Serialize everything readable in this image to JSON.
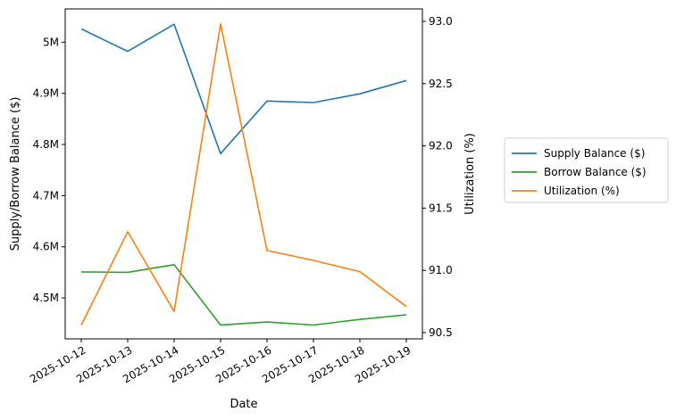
{
  "chart_data": {
    "type": "line",
    "title": "",
    "xlabel": "Date",
    "ylabel": "Supply/Borrow Balance ($)",
    "y2label": "Utilization (%)",
    "x": [
      "2025-10-12",
      "2025-10-13",
      "2025-10-14",
      "2025-10-15",
      "2025-10-16",
      "2025-10-17",
      "2025-10-18",
      "2025-10-19"
    ],
    "ylim": [
      4420000,
      5065000
    ],
    "y2lim": [
      90.45,
      93.1
    ],
    "yticks": [
      4500000,
      4600000,
      4700000,
      4800000,
      4900000,
      5000000
    ],
    "ytick_labels": [
      "4.5M",
      "4.6M",
      "4.7M",
      "4.8M",
      "4.9M",
      "5M"
    ],
    "y2ticks": [
      90.5,
      91.0,
      91.5,
      92.0,
      92.5,
      93.0
    ],
    "y2tick_labels": [
      "90.5",
      "91.0",
      "91.5",
      "92.0",
      "92.5",
      "93.0"
    ],
    "grid": false,
    "legend_position": "right",
    "series": [
      {
        "name": "Supply Balance ($)",
        "axis": "left",
        "color": "#1f77b4",
        "values": [
          5026000,
          4982000,
          5035000,
          4782000,
          4885000,
          4882000,
          4899000,
          4925000
        ]
      },
      {
        "name": "Borrow Balance ($)",
        "axis": "left",
        "color": "#2ca02c",
        "values": [
          4551000,
          4550000,
          4565000,
          4447000,
          4453000,
          4447000,
          4458000,
          4467000
        ]
      },
      {
        "name": "Utilization (%)",
        "axis": "right",
        "color": "#ff7f0e",
        "values": [
          90.56,
          91.31,
          90.67,
          92.98,
          91.16,
          91.08,
          90.99,
          90.71
        ]
      }
    ]
  }
}
